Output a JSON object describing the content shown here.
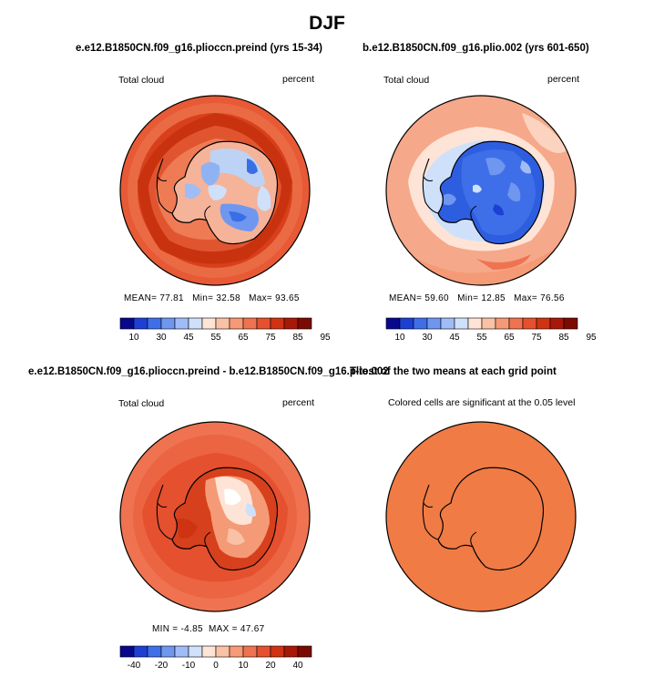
{
  "page_title": "DJF",
  "panels": [
    {
      "title": "e.e12.B1850CN.f09_g16.plioccn.preind (yrs 15-34)",
      "variable": "Total cloud",
      "units": "percent",
      "stats": {
        "mean_label": "MEAN=",
        "mean": "77.81",
        "min_label": "Min=",
        "min": "32.58",
        "max_label": "Max=",
        "max": "93.65"
      },
      "colorbar_ticks": [
        "10",
        "30",
        "45",
        "55",
        "65",
        "75",
        "85",
        "95"
      ]
    },
    {
      "title": "b.e12.B1850CN.f09_g16.plio.002 (yrs 601-650)",
      "variable": "Total cloud",
      "units": "percent",
      "stats": {
        "mean_label": "MEAN=",
        "mean": "59.60",
        "min_label": "Min=",
        "min": "12.85",
        "max_label": "Max=",
        "max": "76.56"
      },
      "colorbar_ticks": [
        "10",
        "30",
        "45",
        "55",
        "65",
        "75",
        "85",
        "95"
      ]
    },
    {
      "title": "e.e12.B1850CN.f09_g16.plioccn.preind - b.e12.B1850CN.f09_g16.plio.002",
      "variable": "Total cloud",
      "units": "percent",
      "stats": {
        "min_label": "MIN =",
        "min": "-4.85",
        "max_label": "MAX =",
        "max": "47.67"
      },
      "colorbar_ticks": [
        "-40",
        "-20",
        "-10",
        "0",
        "10",
        "20",
        "40"
      ]
    },
    {
      "title": "T-test of the two means at each grid point",
      "subtitle": "Colored cells are significant at the 0.05 level"
    }
  ],
  "colors": {
    "abs_scale": [
      "#08088c",
      "#1d3fd4",
      "#3f6fe8",
      "#6f97f0",
      "#9fbcf6",
      "#cfe0fb",
      "#fde4d6",
      "#f9c1a6",
      "#f59a76",
      "#ef7350",
      "#e5502f",
      "#cf3312",
      "#a81808",
      "#7a0a02"
    ],
    "diff_scale": [
      "#08088c",
      "#1d3fd4",
      "#3f6fe8",
      "#6f97f0",
      "#9fbcf6",
      "#cfe0fb",
      "#fde4d6",
      "#f9c1a6",
      "#f59a76",
      "#ef7350",
      "#e5502f",
      "#cf3312",
      "#a81808",
      "#7a0a02"
    ],
    "ttest_fill": "#f07b45",
    "coast": "#000000"
  }
}
